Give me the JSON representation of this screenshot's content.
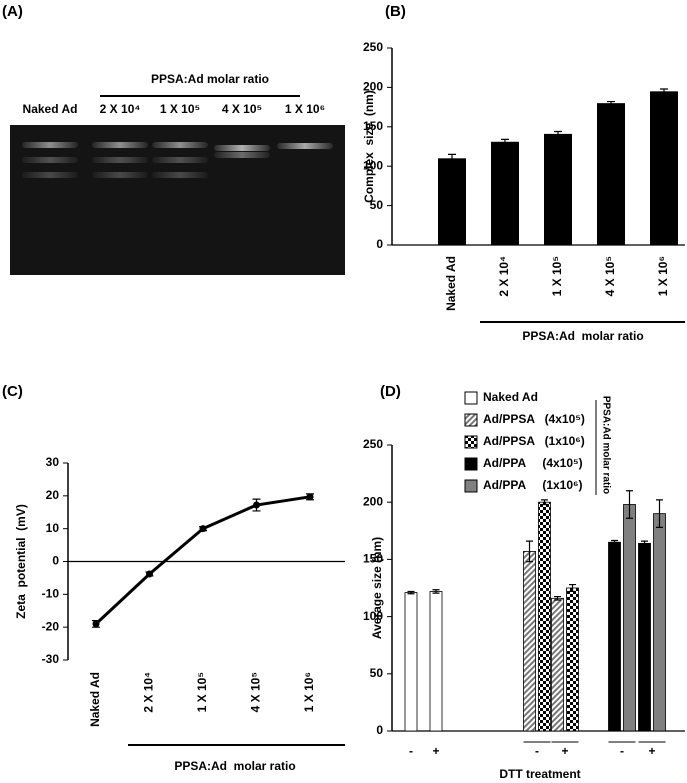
{
  "gel": {
    "panel_label": "(A)",
    "header": "PPSA:Ad molar ratio",
    "lanes": [
      "Naked Ad",
      "2 X 10⁴",
      "1 X 10⁵",
      "4 X 10⁵",
      "1 X 10⁶"
    ]
  },
  "chart_data": [
    {
      "type": "bar",
      "panel_label": "(B)",
      "categories": [
        "Naked Ad",
        "2 X 10⁴",
        "1 X 10⁵",
        "4 X 10⁵",
        "1 X 10⁶"
      ],
      "values": [
        110,
        131,
        141,
        180,
        195
      ],
      "errors": [
        5,
        3,
        3,
        2,
        3
      ],
      "color": "#000000",
      "ylabel": "Complex  size  (nm)",
      "xlabel": "PPSA:Ad  molar ratio",
      "ylim": [
        0,
        250
      ],
      "yticks": [
        0,
        50,
        100,
        150,
        200,
        250
      ]
    },
    {
      "type": "line",
      "panel_label": "(C)",
      "categories": [
        "Naked Ad",
        "2 X 10⁴",
        "1 X 10⁵",
        "4 X 10⁵",
        "1 X 10⁶"
      ],
      "values": [
        -19,
        -3.8,
        10,
        17.2,
        19.7
      ],
      "errors": [
        1,
        0.6,
        0.6,
        1.8,
        0.9
      ],
      "color": "#000000",
      "ylabel": "Zeta  potential  (mV)",
      "xlabel": "PPSA:Ad  molar ratio",
      "ylim": [
        -30,
        30
      ],
      "yticks": [
        -30,
        -20,
        -10,
        0,
        10,
        20,
        30
      ]
    },
    {
      "type": "bar",
      "panel_label": "(D)",
      "categories": [
        "-",
        "+",
        "-",
        "+",
        "-",
        "+"
      ],
      "series": [
        {
          "name": "Naked Ad",
          "color": "#ffffff",
          "pattern": "solid",
          "values": [
            121,
            122,
            null,
            null,
            null,
            null
          ],
          "errors": [
            1,
            1.5,
            null,
            null,
            null,
            null
          ]
        },
        {
          "name": "Ad/PPSA   (4x10⁵)",
          "color": "#ffffff",
          "pattern": "hatch",
          "values": [
            null,
            null,
            157,
            116,
            null,
            null
          ],
          "errors": [
            null,
            null,
            9,
            1.5,
            null,
            null
          ]
        },
        {
          "name": "Ad/PPSA   (1x10⁶)",
          "color": "#ffffff",
          "pattern": "checker",
          "values": [
            null,
            null,
            200,
            125,
            null,
            null
          ],
          "errors": [
            null,
            null,
            2,
            3,
            null,
            null
          ]
        },
        {
          "name": "Ad/PPA     (4x10⁵)",
          "color": "#000000",
          "pattern": "solid",
          "values": [
            null,
            null,
            null,
            null,
            165,
            164
          ],
          "errors": [
            null,
            null,
            null,
            null,
            1.5,
            2
          ]
        },
        {
          "name": "Ad/PPA     (1x10⁶)",
          "color": "#808080",
          "pattern": "solid",
          "values": [
            null,
            null,
            null,
            null,
            198,
            190
          ],
          "errors": [
            null,
            null,
            null,
            null,
            12,
            12
          ]
        }
      ],
      "legend_note": "PPSA:Ad molar ratio",
      "ylabel": "Average size (nm)",
      "xlabel": "DTT treatment",
      "ylim": [
        0,
        250
      ],
      "yticks": [
        0,
        50,
        100,
        150,
        200,
        250
      ]
    }
  ]
}
